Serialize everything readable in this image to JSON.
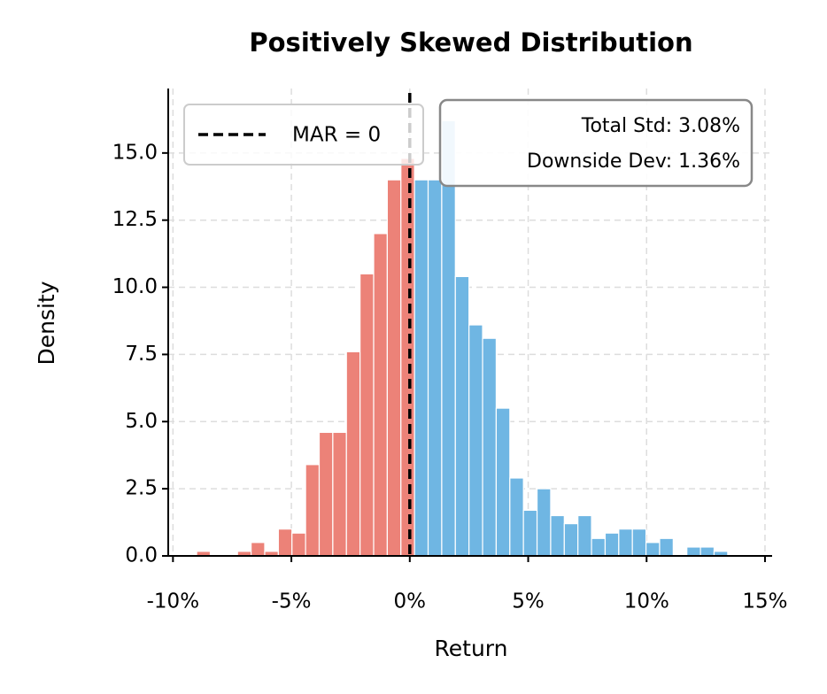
{
  "chart_data": {
    "type": "histogram",
    "title": "Positively Skewed Distribution",
    "x_label": "Return",
    "y_label": "Density",
    "bins": [
      -9.0,
      -8.425,
      -7.85,
      -7.275,
      -6.7,
      -6.125,
      -5.55,
      -4.975,
      -4.4,
      -3.825,
      -3.25,
      -2.675,
      -2.1,
      -1.525,
      -0.95,
      -0.375,
      0.2,
      0.775,
      1.35,
      1.925,
      2.5,
      3.075,
      3.65,
      4.225,
      4.8,
      5.375,
      5.95,
      6.525,
      7.1,
      7.675,
      8.25,
      8.825,
      9.4,
      9.975,
      10.55,
      11.125,
      11.7,
      12.275,
      12.85,
      13.425,
      14.0
    ],
    "values": [
      0.17,
      0,
      0,
      0.17,
      0.5,
      0.17,
      1.0,
      0.85,
      3.4,
      4.6,
      4.6,
      7.6,
      10.5,
      12.0,
      14.0,
      14.8,
      14.0,
      14.0,
      16.2,
      10.4,
      8.6,
      8.1,
      5.5,
      2.9,
      1.7,
      2.5,
      1.5,
      1.2,
      1.5,
      0.65,
      0.85,
      1.0,
      1.0,
      0.5,
      0.65,
      0,
      0.33,
      0.33,
      0.17,
      0
    ],
    "below_color": "#ec8278",
    "above_color": "#6fb6e3",
    "reference_line": {
      "x": 0,
      "label": "MAR = 0",
      "color": "#000000"
    },
    "annotations": [
      "Total Std: 3.08%",
      "Downside Dev: 1.36%"
    ],
    "xlim": [
      -10.2,
      15.3
    ],
    "ylim": [
      0,
      17.4
    ],
    "xticks": [
      {
        "value": -10,
        "label": "-10%"
      },
      {
        "value": -5,
        "label": "-5%"
      },
      {
        "value": 0,
        "label": "0%"
      },
      {
        "value": 5,
        "label": "5%"
      },
      {
        "value": 10,
        "label": "10%"
      },
      {
        "value": 15,
        "label": "15%"
      }
    ],
    "yticks": [
      {
        "value": 0,
        "label": "0.0"
      },
      2.5,
      {
        "value": 5,
        "label": "5.0"
      },
      7.5,
      {
        "value": 10,
        "label": "10.0"
      },
      12.5,
      {
        "value": 15,
        "label": "15.0"
      }
    ],
    "grid": true,
    "legend": "upper left"
  }
}
